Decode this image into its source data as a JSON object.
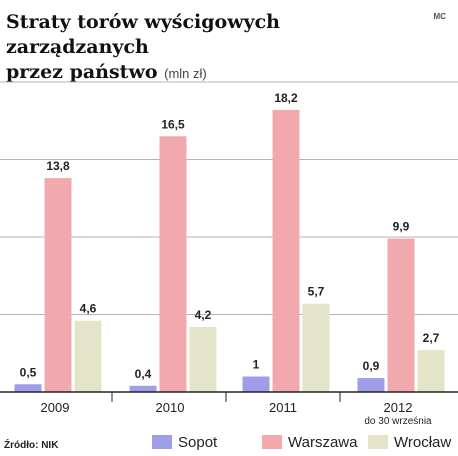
{
  "header": {
    "title_line1": "Straty torów wyścigowych zarządzanych",
    "title_line2": "przez państwo",
    "unit": "(mln zł)",
    "credit": "MC"
  },
  "footer": {
    "source": "Źródło: NIK"
  },
  "chart_data": {
    "type": "bar",
    "categories": [
      "2009",
      "2010",
      "2011",
      "2012"
    ],
    "category_notes": [
      "",
      "",
      "",
      "do 30 września"
    ],
    "series": [
      {
        "name": "Sopot",
        "color": "#9f9ee8",
        "values": [
          0.5,
          0.4,
          1,
          0.9
        ],
        "labels": [
          "0,5",
          "0,4",
          "1",
          "0,9"
        ]
      },
      {
        "name": "Warszawa",
        "color": "#f2a9ae",
        "values": [
          13.8,
          16.5,
          18.2,
          9.9
        ],
        "labels": [
          "13,8",
          "16,5",
          "18,2",
          "9,9"
        ]
      },
      {
        "name": "Wrocław",
        "color": "#e3e4c8",
        "values": [
          4.6,
          4.2,
          5.7,
          2.7
        ],
        "labels": [
          "4,6",
          "4,2",
          "5,7",
          "2,7"
        ]
      }
    ],
    "ylim": [
      0,
      20
    ],
    "grid": true,
    "legend_position": "bottom"
  }
}
